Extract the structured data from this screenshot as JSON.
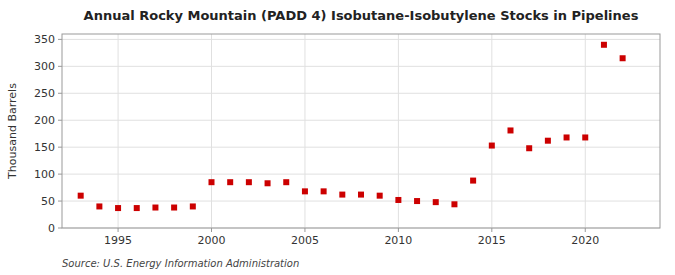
{
  "chart_data": {
    "type": "scatter",
    "title": "Annual Rocky Mountain (PADD 4) Isobutane-Isobutylene Stocks in Pipelines",
    "ylabel": "Thousand Barrels",
    "source": "Source: U.S. Energy Information Administration",
    "x": [
      1993,
      1994,
      1995,
      1996,
      1997,
      1998,
      1999,
      2000,
      2001,
      2002,
      2003,
      2004,
      2005,
      2006,
      2007,
      2008,
      2009,
      2010,
      2011,
      2012,
      2013,
      2014,
      2015,
      2016,
      2017,
      2018,
      2019,
      2020,
      2021,
      2022
    ],
    "values": [
      60,
      40,
      37,
      37,
      38,
      38,
      40,
      85,
      85,
      85,
      83,
      85,
      68,
      68,
      62,
      62,
      60,
      52,
      50,
      48,
      44,
      88,
      153,
      181,
      148,
      162,
      168,
      168,
      340,
      315
    ],
    "color": "#cc0000",
    "marker": "square",
    "xlim": [
      1992,
      2024
    ],
    "xticks": [
      1995,
      2000,
      2005,
      2010,
      2015,
      2020
    ],
    "ylim": [
      0,
      360
    ],
    "yticks": [
      0,
      50,
      100,
      150,
      200,
      250,
      300,
      350
    ],
    "grid": true
  }
}
